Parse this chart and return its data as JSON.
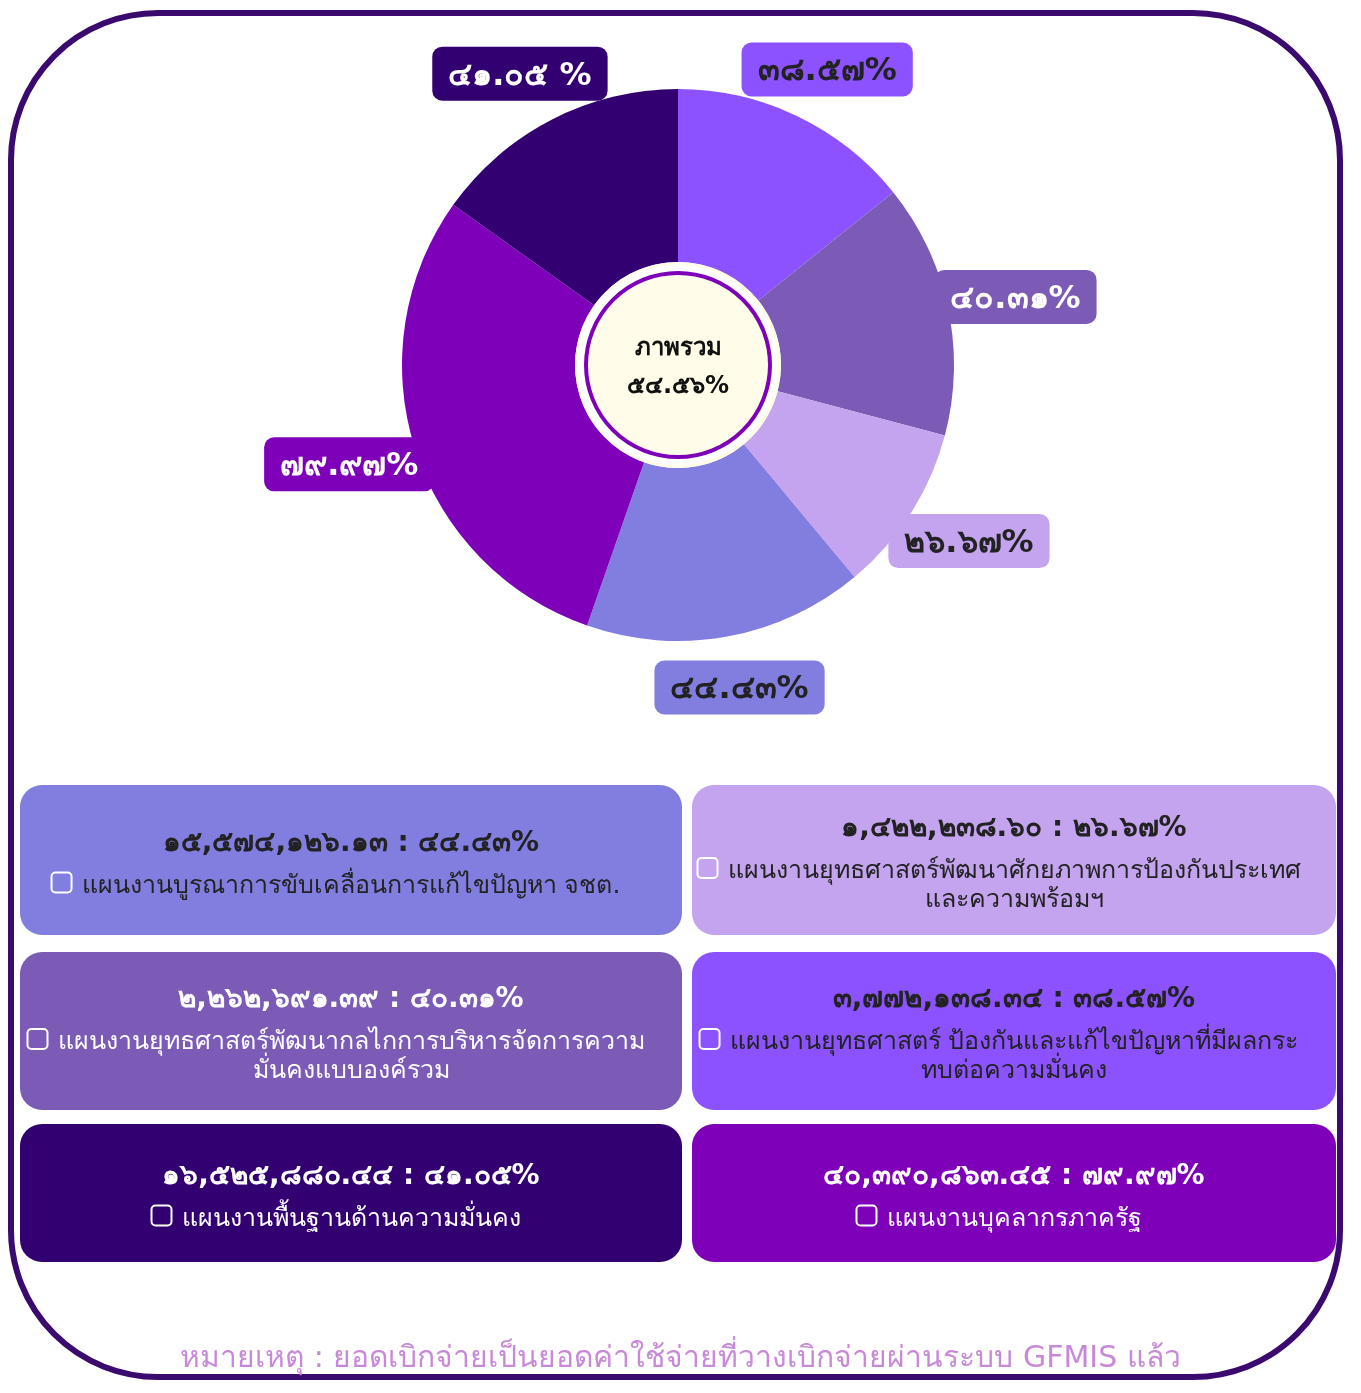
{
  "chart_data": {
    "type": "donut",
    "categories": [
      "แผนงานยุทธศาสตร์ ป้องกันและแก้ไขปัญหาที่มีผลกระทบต่อความมั่นคง",
      "แผนงานยุทธศาสตร์พัฒนากลไกการบริหารจัดการความมั่นคงแบบองค์รวม",
      "แผนงานยุทธศาสตร์พัฒนาศักยภาพการป้องกันประเทศและความพร้อมฯ",
      "แผนงานบูรณาการขับเคลื่อนการแก้ไขปัญหา จชต.",
      "แผนงานบุคลากรภาครัฐ",
      "แผนงานพื้นฐานด้านความมั่นคง"
    ],
    "values": [
      38.57,
      40.31,
      26.67,
      44.43,
      79.97,
      41.05
    ],
    "colors": [
      "#8c52ff",
      "#7c5bb7",
      "#c4a3ef",
      "#827ee0",
      "#7e00b8",
      "#330072"
    ],
    "value_labels": [
      "๓๘.๕๗%",
      "๔๐.๓๑%",
      "๒๖.๖๗%",
      "๔๔.๔๓%",
      "๗๙.๙๗%",
      "๔๑.๐๕ %"
    ],
    "annotations": [
      "ภาพรวม",
      "๕๔.๕๖%",
      "๓,๗๗๒,๑๓๘.๓๔ : ๓๘.๕๗%",
      "๒,๒๖๒,๖๙๑.๓๙ : ๔๐.๓๑%",
      "๑,๔๒๒,๒๓๘.๖๐ : ๒๖.๖๗%",
      "๑๕,๕๗๔,๑๒๖.๑๓ : ๔๔.๔๓%",
      "๔๐,๓๙๐,๘๖๓.๔๕ : ๗๙.๙๗%",
      "๑๖,๕๒๕,๘๘๐.๔๔ : ๔๑.๐๕%",
      "หมายเหตุ : ยอดเบิกจ่ายเป็นยอดค่าใช้จ่ายที่วางเบิกจ่ายผ่านระบบ GFMIS  แล้ว"
    ],
    "legend": "bottom"
  }
}
